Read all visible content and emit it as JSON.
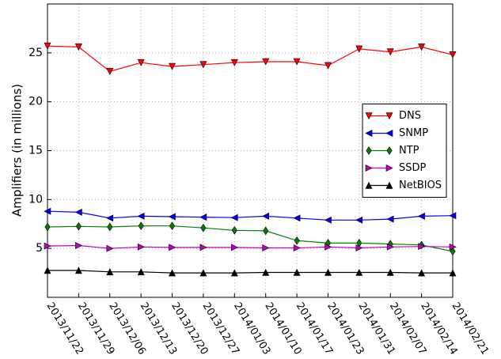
{
  "chart_data": {
    "type": "line",
    "y_label": "Amplifiers (in millions)",
    "categories": [
      "2013/11/22",
      "2013/11/29",
      "2013/12/06",
      "2013/12/13",
      "2013/12/20",
      "2013/12/27",
      "2014/01/03",
      "2014/01/10",
      "2014/01/17",
      "2014/01/23",
      "2014/01/31",
      "2014/02/07",
      "2014/02/14",
      "2014/02/21"
    ],
    "series": [
      {
        "name": "DNS",
        "color": "#ff0000",
        "marker": "down",
        "values": [
          25.7,
          25.6,
          23.1,
          24.0,
          23.6,
          23.8,
          24.0,
          24.1,
          24.1,
          23.7,
          25.4,
          25.1,
          25.6,
          24.8
        ]
      },
      {
        "name": "SNMP",
        "color": "#0000ff",
        "marker": "left",
        "values": [
          8.8,
          8.7,
          8.1,
          8.3,
          8.25,
          8.2,
          8.15,
          8.3,
          8.1,
          7.9,
          7.9,
          8.0,
          8.3,
          8.35
        ]
      },
      {
        "name": "NTP",
        "color": "#008000",
        "marker": "diamond",
        "values": [
          7.2,
          7.25,
          7.2,
          7.3,
          7.3,
          7.1,
          6.85,
          6.8,
          5.8,
          5.55,
          5.55,
          5.45,
          5.35,
          4.7
        ]
      },
      {
        "name": "SSDP",
        "color": "#c000c0",
        "marker": "right",
        "values": [
          5.25,
          5.3,
          5.0,
          5.15,
          5.1,
          5.1,
          5.1,
          5.05,
          5.05,
          5.15,
          5.05,
          5.15,
          5.2,
          5.15
        ]
      },
      {
        "name": "NetBIOS",
        "color": "#000000",
        "marker": "up",
        "values": [
          2.75,
          2.75,
          2.6,
          2.6,
          2.5,
          2.5,
          2.5,
          2.55,
          2.55,
          2.55,
          2.55,
          2.55,
          2.5,
          2.5
        ]
      }
    ],
    "ylim": [
      0,
      30
    ],
    "yticks": [
      5,
      10,
      15,
      20,
      25
    ],
    "grid": true,
    "legend": "center right"
  }
}
